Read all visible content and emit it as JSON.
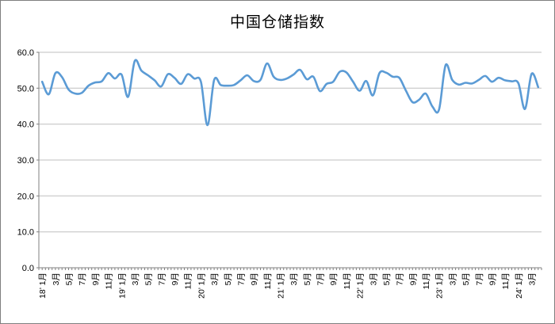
{
  "window": {
    "background": "#ffffff",
    "border_color": "#7f7f7f"
  },
  "chart_data": {
    "type": "line",
    "title": "中国仓储指数",
    "legend": "none",
    "grid": "horizontal",
    "line_smooth": true,
    "colors": {
      "series": "#5b9bd5",
      "grid": "#bfbfbf",
      "axis": "#808080",
      "text": "#000000"
    },
    "ylim": [
      0,
      60
    ],
    "y_ticks": [
      0,
      10,
      20,
      30,
      40,
      50,
      60
    ],
    "y_tick_labels": [
      "0.0",
      "10.0",
      "20.0",
      "30.0",
      "40.0",
      "50.0",
      "60.0"
    ],
    "x_label_every": 2,
    "x_tick_labels": [
      "18’ 1月",
      "3月",
      "5月",
      "7月",
      "9月",
      "11月",
      "19’ 1月",
      "3月",
      "5月",
      "7月",
      "9月",
      "11月",
      "20’ 1月",
      "3月",
      "5月",
      "7月",
      "9月",
      "11月",
      "21’ 1月",
      "3月",
      "5月",
      "7月",
      "9月",
      "11月",
      "22’ 1月",
      "3月",
      "5月",
      "7月",
      "9月",
      "11月",
      "23’ 1月",
      "3月",
      "5月",
      "7月",
      "9月",
      "11月",
      "24’ 1月",
      "3月"
    ],
    "series": [
      {
        "name": "中国仓储指数",
        "months_span": "2018-01 to 2024-04 (monthly)",
        "values": [
          51.8,
          48.3,
          54.2,
          53.1,
          49.6,
          48.5,
          48.7,
          50.7,
          51.6,
          51.9,
          54.2,
          52.7,
          53.8,
          47.6,
          57.6,
          54.9,
          53.6,
          52.2,
          50.5,
          53.9,
          52.9,
          51.2,
          53.9,
          52.7,
          51.8,
          39.7,
          52.3,
          50.9,
          50.7,
          50.9,
          52.2,
          53.6,
          52.0,
          52.3,
          56.9,
          53.2,
          52.3,
          52.7,
          53.8,
          55.1,
          52.5,
          53.2,
          49.2,
          51.2,
          51.8,
          54.6,
          54.4,
          51.8,
          49.3,
          52.0,
          48.0,
          54.2,
          54.3,
          53.2,
          52.9,
          49.3,
          46.1,
          46.8,
          48.5,
          44.9,
          44.0,
          56.4,
          52.3,
          51.0,
          51.5,
          51.3,
          52.3,
          53.4,
          51.8,
          52.9,
          52.2,
          51.9,
          51.4,
          44.2,
          54.0,
          50.3
        ]
      }
    ]
  }
}
